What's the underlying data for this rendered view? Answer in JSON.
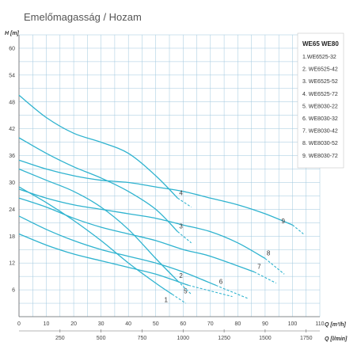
{
  "colors": {
    "curve": "#2fb3cf",
    "grid": "#9ec7de",
    "axis": "#6a6a6a",
    "background": "#ffffff"
  },
  "chart_data": {
    "type": "line",
    "title": "Emelőmagasság / Hozam",
    "ylabel": "H [m]",
    "xlabel": "Q [m³/h]",
    "x2label": "Q [l/min]",
    "xlim": [
      0,
      110
    ],
    "ylim": [
      0,
      63
    ],
    "x_ticks": [
      0,
      10,
      20,
      30,
      40,
      50,
      60,
      70,
      80,
      90,
      100,
      110
    ],
    "y_ticks": [
      6,
      12,
      18,
      24,
      30,
      36,
      42,
      48,
      54,
      60
    ],
    "x2_ticks": [
      250,
      500,
      750,
      1000,
      1250,
      1500,
      1750
    ],
    "grid": true,
    "legend_position": "top-right",
    "legend_header": [
      "WE65",
      "WE80"
    ],
    "series": [
      {
        "label": "1",
        "name": "1.WE6525-32",
        "x": [
          0,
          10,
          20,
          30,
          40,
          50,
          56
        ],
        "y": [
          29,
          25.5,
          21.5,
          17,
          12,
          7.5,
          5
        ],
        "dashed_x": [
          56,
          61
        ],
        "dashed_y": [
          5,
          3
        ]
      },
      {
        "label": "2",
        "name": "2. WE6525-42",
        "x": [
          0,
          10,
          20,
          30,
          40,
          50,
          58
        ],
        "y": [
          33,
          30.5,
          28,
          24.5,
          19.5,
          13,
          8
        ],
        "dashed_x": [
          58,
          63
        ],
        "dashed_y": [
          8,
          5
        ]
      },
      {
        "label": "3",
        "name": "3. WE6525-52",
        "x": [
          0,
          10,
          20,
          30,
          40,
          50,
          58
        ],
        "y": [
          40,
          36.5,
          33.5,
          31,
          28,
          24,
          19
        ],
        "dashed_x": [
          58,
          63
        ],
        "dashed_y": [
          19,
          16.5
        ]
      },
      {
        "label": "4",
        "name": "4. WE6525-72",
        "x": [
          0,
          10,
          20,
          30,
          40,
          50,
          58
        ],
        "y": [
          49.5,
          44.5,
          41,
          39,
          36.5,
          31.5,
          26.5
        ],
        "dashed_x": [
          58,
          63
        ],
        "dashed_y": [
          26.5,
          24.5
        ]
      },
      {
        "label": "5",
        "name": "5. WE8030-22",
        "x": [
          0,
          10,
          20,
          30,
          40,
          50,
          62
        ],
        "y": [
          18.5,
          16,
          14,
          12.5,
          11,
          9.5,
          7
        ],
        "dashed_x": [
          62,
          78
        ],
        "dashed_y": [
          7,
          4.5
        ]
      },
      {
        "label": "6",
        "name": "6. WE8030-32",
        "x": [
          0,
          10,
          20,
          30,
          40,
          50,
          60,
          72
        ],
        "y": [
          22.5,
          19.5,
          17,
          15,
          13.5,
          12,
          10,
          7
        ],
        "dashed_x": [
          72,
          84
        ],
        "dashed_y": [
          7,
          4
        ]
      },
      {
        "label": "7",
        "name": "7. WE8030-42",
        "x": [
          0,
          10,
          20,
          30,
          40,
          50,
          60,
          70,
          86
        ],
        "y": [
          26.5,
          24.5,
          22,
          20,
          18.5,
          17,
          15,
          13.5,
          10
        ],
        "dashed_x": [
          86,
          94
        ],
        "dashed_y": [
          10,
          7.5
        ]
      },
      {
        "label": "8",
        "name": "8. WE8030-52",
        "x": [
          0,
          10,
          20,
          30,
          40,
          50,
          60,
          70,
          80,
          90
        ],
        "y": [
          28.5,
          26.5,
          25,
          24,
          23,
          22,
          20.5,
          19,
          16.5,
          13
        ],
        "dashed_x": [
          90,
          97
        ],
        "dashed_y": [
          13,
          9.5
        ]
      },
      {
        "label": "9",
        "name": "9. WE8030-72",
        "x": [
          0,
          10,
          20,
          30,
          40,
          50,
          60,
          70,
          80,
          90,
          100
        ],
        "y": [
          35,
          33,
          31.5,
          30.5,
          30,
          29,
          28,
          26.5,
          25,
          23,
          20.5
        ],
        "dashed_x": [
          100,
          104
        ],
        "dashed_y": [
          20.5,
          18.5
        ]
      }
    ]
  }
}
